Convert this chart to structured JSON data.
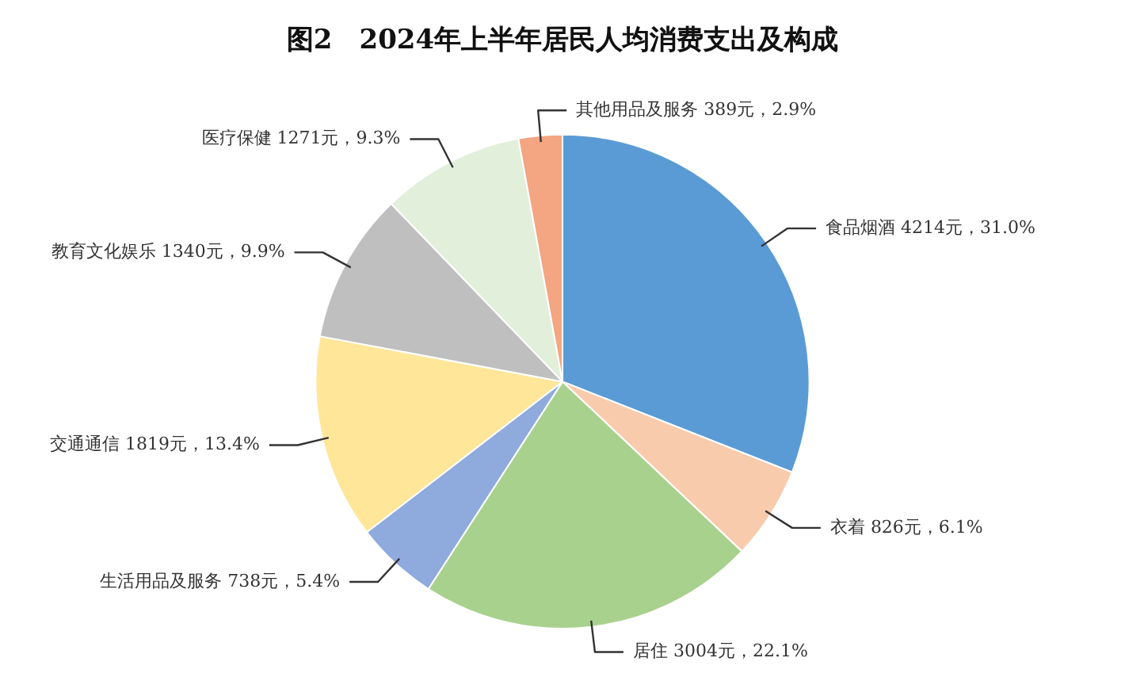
{
  "chart_data": {
    "type": "pie",
    "title": "图2　2024年上半年居民人均消费支出及构成",
    "categories": [
      "食品烟酒",
      "衣着",
      "居住",
      "生活用品及服务",
      "交通通信",
      "教育文化娱乐",
      "医疗保健",
      "其他用品及服务"
    ],
    "values": [
      4214,
      826,
      3004,
      738,
      1819,
      1340,
      1271,
      389
    ],
    "value_labels": [
      "4214元，31.0%",
      "826元，6.1%",
      "3004元，22.1%",
      "738元，5.4%",
      "1819元，13.4%",
      "1340元，9.9%",
      "1271元，9.3%",
      "389元，2.9%"
    ],
    "colors": [
      "#5b9bd5",
      "#f8cbad",
      "#a9d18e",
      "#8faadc",
      "#ffe699",
      "#bfbfbf",
      "#e2efda",
      "#f4a582"
    ],
    "legend": false
  }
}
